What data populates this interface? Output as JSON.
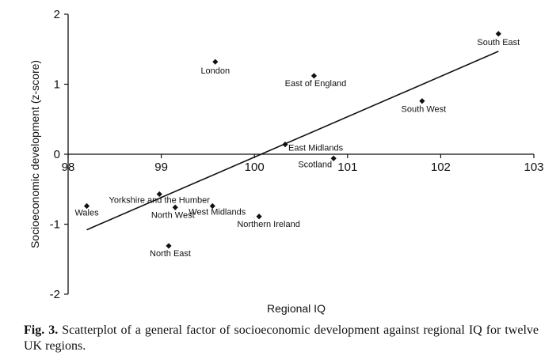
{
  "chart_data": {
    "type": "scatter",
    "xlabel": "Regional IQ",
    "ylabel": "Socioeconomic development (z-score)",
    "xlim": [
      98,
      103
    ],
    "ylim": [
      -2,
      2
    ],
    "xticks": [
      "98",
      "99",
      "100",
      "101",
      "102",
      "103"
    ],
    "yticks": [
      "2",
      "1",
      "0",
      "-1",
      "-2"
    ],
    "points": [
      {
        "label": "South East",
        "x": 102.62,
        "y": 1.72
      },
      {
        "label": "London",
        "x": 99.58,
        "y": 1.32
      },
      {
        "label": "East of England",
        "x": 100.64,
        "y": 1.12
      },
      {
        "label": "South West",
        "x": 101.8,
        "y": 0.76
      },
      {
        "label": "East Midlands",
        "x": 100.33,
        "y": 0.14
      },
      {
        "label": "Scotland",
        "x": 100.85,
        "y": -0.06
      },
      {
        "label": "Yorkshire and the Humber",
        "x": 98.98,
        "y": -0.57
      },
      {
        "label": "Wales",
        "x": 98.2,
        "y": -0.74
      },
      {
        "label": "North West",
        "x": 99.15,
        "y": -0.76
      },
      {
        "label": "West Midlands",
        "x": 99.55,
        "y": -0.74
      },
      {
        "label": "Northern Ireland",
        "x": 100.05,
        "y": -0.89
      },
      {
        "label": "North East",
        "x": 99.08,
        "y": -1.31
      }
    ],
    "trendline": {
      "x": [
        98.2,
        102.62
      ],
      "y": [
        -1.08,
        1.47
      ]
    }
  },
  "caption": {
    "prefix": "Fig. 3.",
    "text": "Scatterplot of a general factor of socioeconomic development against regional IQ for twelve UK regions."
  }
}
